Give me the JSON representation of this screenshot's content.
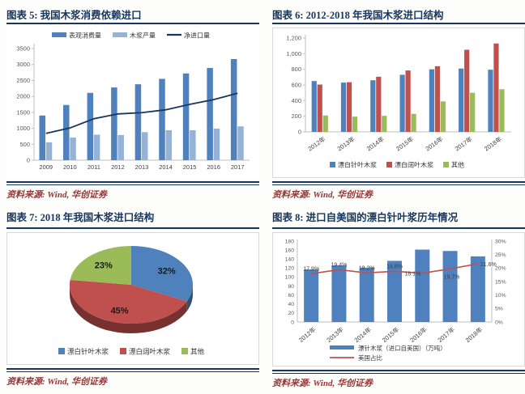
{
  "source_label": "资料来源: Wind, 华创证券",
  "theme": {
    "title_color": "#17365D",
    "rule_color": "#17365D",
    "source_color": "#943634",
    "axis_text_color": "#595959",
    "panel_border_color": "#D9D9D9"
  },
  "chart_data": [
    {
      "id": "fig5",
      "type": "bar",
      "title": "图表 5: 我国木浆消费依赖进口",
      "categories": [
        "2009",
        "2010",
        "2011",
        "2012",
        "2013",
        "2014",
        "2015",
        "2016",
        "2017"
      ],
      "series": [
        {
          "name": "表观消费量",
          "type": "bar",
          "color": "#4F81BD",
          "values": [
            1400,
            1730,
            2110,
            2280,
            2380,
            2550,
            2720,
            2890,
            3170
          ]
        },
        {
          "name": "木浆产量",
          "type": "bar",
          "color": "#95B3D7",
          "values": [
            560,
            710,
            800,
            790,
            880,
            940,
            940,
            990,
            1060
          ]
        },
        {
          "name": "净进口量",
          "type": "line",
          "color": "#17375E",
          "values": [
            840,
            1010,
            1300,
            1450,
            1490,
            1580,
            1750,
            1900,
            2100
          ]
        }
      ],
      "ylim": [
        0,
        3500
      ],
      "ytick": 500,
      "legend_position": "top",
      "grid": false
    },
    {
      "id": "fig6",
      "type": "bar",
      "title": "图表 6: 2012-2018 年我国木浆进口结构",
      "categories": [
        "2012年",
        "2013年",
        "2014年",
        "2015年",
        "2016年",
        "2017年",
        "2018年"
      ],
      "series": [
        {
          "name": "漂白针叶木浆",
          "type": "bar",
          "color": "#4F81BD",
          "values": [
            650,
            630,
            660,
            730,
            800,
            810,
            795
          ]
        },
        {
          "name": "漂白阔叶木浆",
          "type": "bar",
          "color": "#C0504D",
          "values": [
            605,
            635,
            705,
            785,
            840,
            1050,
            1130
          ]
        },
        {
          "name": "其他",
          "type": "bar",
          "color": "#9BBB59",
          "values": [
            210,
            195,
            205,
            230,
            390,
            500,
            545
          ]
        }
      ],
      "ylim": [
        0,
        1200
      ],
      "ytick": 200,
      "legend_position": "bottom",
      "grid": false
    },
    {
      "id": "fig7",
      "type": "pie",
      "title": "图表 7: 2018 年我国木浆进口结构",
      "slices": [
        {
          "name": "漂白针叶木浆",
          "value": 32,
          "label": "32%",
          "color": "#4F81BD"
        },
        {
          "name": "漂白阔叶木浆",
          "value": 45,
          "label": "45%",
          "color": "#C0504D"
        },
        {
          "name": "其他",
          "value": 23,
          "label": "23%",
          "color": "#9BBB59"
        }
      ],
      "legend_position": "bottom"
    },
    {
      "id": "fig8",
      "type": "bar",
      "title": "图表 8: 进口自美国的漂白针叶浆历年情况",
      "categories": [
        "2012年",
        "2013年",
        "2014年",
        "2015年",
        "2016年",
        "2017年",
        "2018年"
      ],
      "series": [
        {
          "name": "漂针木浆（进口自美国）（万吨）",
          "type": "bar",
          "axis": "left",
          "color": "#4E81BD",
          "values": [
            117,
            126,
            121,
            136,
            161,
            158,
            146
          ]
        },
        {
          "name": "美国占比",
          "type": "line",
          "axis": "right",
          "color": "#C0504D",
          "values": [
            17.9,
            19.4,
            18.2,
            18.8,
            18.1,
            19.7,
            21.6
          ],
          "labels": [
            "17.9%",
            "19.4%",
            "18.2%",
            "18.8%",
            "18.1%",
            "19.7%",
            "21.6%"
          ]
        }
      ],
      "ylim_left": [
        0,
        180
      ],
      "ytick_left": 20,
      "ylim_right": [
        0,
        30
      ],
      "ytick_right": 5,
      "legend_position": "bottom",
      "grid": false
    }
  ]
}
